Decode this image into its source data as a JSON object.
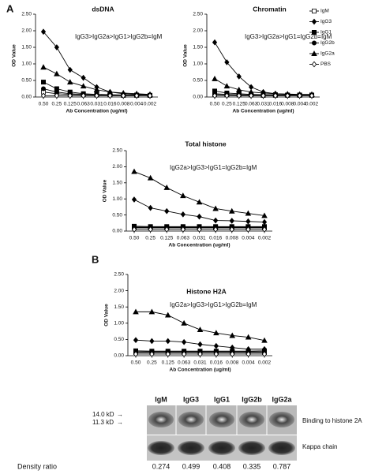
{
  "panels": [
    "A",
    "B"
  ],
  "chart_data": [
    {
      "type": "line",
      "title": "dsDNA",
      "annotation": "IgG3>IgG2a>IgG1>IgG2b=IgM",
      "xlabel": "Ab Concentration  (ug/ml)",
      "ylabel": "OD Value",
      "categories": [
        "0.50",
        "0.25",
        "0.125",
        "0.063",
        "0.031",
        "0.016",
        "0.008",
        "0.004",
        "0.002"
      ],
      "ylim": [
        0,
        2.5
      ],
      "yticks": [
        {
          "value": 0,
          "label": "0.00"
        },
        {
          "value": 0.5,
          "label": "0.50"
        },
        {
          "value": 1,
          "label": "1.00"
        },
        {
          "value": 1.5,
          "label": "1.50"
        },
        {
          "value": 2,
          "label": "2.00"
        },
        {
          "value": 2.5,
          "label": "2.50"
        }
      ],
      "series": [
        {
          "color": "#000",
          "marker": "open-square",
          "values": [
            0.15,
            0.1,
            0.08,
            0.07,
            0.06,
            0.06,
            0.05,
            0.05,
            0.05
          ]
        },
        {
          "color": "#000",
          "marker": "diamond",
          "values": [
            1.97,
            1.5,
            0.82,
            0.58,
            0.3,
            0.15,
            0.1,
            0.08,
            0.07
          ]
        },
        {
          "color": "#000",
          "marker": "square",
          "values": [
            0.45,
            0.25,
            0.15,
            0.1,
            0.08,
            0.07,
            0.06,
            0.06,
            0.05
          ]
        },
        {
          "color": "#000",
          "marker": "circle",
          "values": [
            0.25,
            0.15,
            0.1,
            0.08,
            0.07,
            0.06,
            0.06,
            0.05,
            0.05
          ]
        },
        {
          "color": "#000",
          "marker": "triangle",
          "values": [
            0.9,
            0.7,
            0.45,
            0.33,
            0.22,
            0.15,
            0.12,
            0.1,
            0.08
          ]
        },
        {
          "color": "#000",
          "marker": "open-diamond",
          "values": [
            0.04,
            0.04,
            0.04,
            0.04,
            0.04,
            0.04,
            0.04,
            0.04,
            0.04
          ]
        }
      ]
    },
    {
      "type": "line",
      "title": "Chromatin",
      "annotation": "IgG3>IgG2a>IgG1=IgG2b=IgM",
      "xlabel": "Ab Concentration  (ug/ml)",
      "ylabel": "OD Value",
      "legend": true,
      "categories": [
        "0.50",
        "0.25",
        "0.125",
        "0.063",
        "0.031",
        "0.016",
        "0.008",
        "0.004",
        "0.002"
      ],
      "ylim": [
        0,
        2.5
      ],
      "yticks": [
        {
          "value": 0,
          "label": "0.00"
        },
        {
          "value": 0.5,
          "label": "0.50"
        },
        {
          "value": 1,
          "label": "1.00"
        },
        {
          "value": 1.5,
          "label": "1.50"
        },
        {
          "value": 2,
          "label": "2.00"
        },
        {
          "value": 2.5,
          "label": "2.50"
        }
      ],
      "series": [
        {
          "name": "IgM",
          "color": "#000",
          "marker": "open-square",
          "values": [
            0.08,
            0.07,
            0.06,
            0.06,
            0.05,
            0.05,
            0.05,
            0.05,
            0.05
          ]
        },
        {
          "name": "IgG3",
          "color": "#000",
          "marker": "diamond",
          "values": [
            1.65,
            1.05,
            0.62,
            0.3,
            0.15,
            0.1,
            0.08,
            0.07,
            0.07
          ]
        },
        {
          "name": "IgG1",
          "color": "#000",
          "marker": "square",
          "values": [
            0.18,
            0.12,
            0.1,
            0.08,
            0.07,
            0.07,
            0.06,
            0.06,
            0.06
          ]
        },
        {
          "name": "IgG2b",
          "color": "#000",
          "marker": "circle",
          "values": [
            0.1,
            0.08,
            0.07,
            0.06,
            0.06,
            0.06,
            0.05,
            0.05,
            0.05
          ]
        },
        {
          "name": "IgG2a",
          "color": "#000",
          "marker": "triangle",
          "values": [
            0.55,
            0.33,
            0.22,
            0.15,
            0.12,
            0.1,
            0.09,
            0.08,
            0.08
          ]
        },
        {
          "name": "PBS",
          "color": "#000",
          "marker": "open-diamond",
          "values": [
            0.04,
            0.04,
            0.04,
            0.04,
            0.04,
            0.04,
            0.04,
            0.04,
            0.04
          ]
        }
      ]
    },
    {
      "type": "line",
      "title": "Total histone",
      "annotation": "IgG2a>IgG3>IgG1=IgG2b=IgM",
      "xlabel": "Ab Concentration  (ug/ml)",
      "ylabel": "OD Value",
      "categories": [
        "0.50",
        "0.25",
        "0.125",
        "0.063",
        "0.031",
        "0.016",
        "0.008",
        "0.004",
        "0.002"
      ],
      "ylim": [
        0,
        2.5
      ],
      "yticks": [
        {
          "value": 0,
          "label": "0.00"
        },
        {
          "value": 0.5,
          "label": "0.50"
        },
        {
          "value": 1,
          "label": "1.00"
        },
        {
          "value": 1.5,
          "label": "1.50"
        },
        {
          "value": 2,
          "label": "2.00"
        },
        {
          "value": 2.5,
          "label": "2.50"
        }
      ],
      "series": [
        {
          "color": "#000",
          "marker": "open-square",
          "values": [
            0.1,
            0.1,
            0.1,
            0.1,
            0.1,
            0.1,
            0.1,
            0.1,
            0.1
          ]
        },
        {
          "color": "#000",
          "marker": "diamond",
          "values": [
            0.98,
            0.72,
            0.62,
            0.52,
            0.45,
            0.33,
            0.32,
            0.3,
            0.28
          ]
        },
        {
          "color": "#000",
          "marker": "square",
          "values": [
            0.15,
            0.14,
            0.14,
            0.14,
            0.14,
            0.14,
            0.14,
            0.14,
            0.14
          ]
        },
        {
          "color": "#000",
          "marker": "circle",
          "values": [
            0.12,
            0.12,
            0.12,
            0.12,
            0.12,
            0.12,
            0.12,
            0.12,
            0.12
          ]
        },
        {
          "color": "#000",
          "marker": "triangle",
          "values": [
            1.85,
            1.65,
            1.35,
            1.1,
            0.9,
            0.7,
            0.62,
            0.55,
            0.48
          ]
        },
        {
          "color": "#000",
          "marker": "open-diamond",
          "values": [
            0.05,
            0.05,
            0.05,
            0.05,
            0.05,
            0.05,
            0.05,
            0.05,
            0.05
          ]
        }
      ]
    },
    {
      "type": "line",
      "title": "Histone H2A",
      "annotation": "IgG2a>IgG3>IgG1>IgG2b=IgM",
      "xlabel": "Ab Concentration  (ug/ml)",
      "ylabel": "OD Value",
      "categories": [
        "0.50",
        "0.25",
        "0.125",
        "0.063",
        "0.031",
        "0.016",
        "0.008",
        "0.004",
        "0.002"
      ],
      "ylim": [
        0,
        2.5
      ],
      "yticks": [
        {
          "value": 0,
          "label": "0.00"
        },
        {
          "value": 0.5,
          "label": "0.50"
        },
        {
          "value": 1,
          "label": "1.00"
        },
        {
          "value": 1.5,
          "label": "1.50"
        },
        {
          "value": 2,
          "label": "2.00"
        },
        {
          "value": 2.5,
          "label": "2.50"
        }
      ],
      "series": [
        {
          "color": "#000",
          "marker": "open-square",
          "values": [
            0.1,
            0.1,
            0.1,
            0.1,
            0.1,
            0.1,
            0.1,
            0.1,
            0.1
          ]
        },
        {
          "color": "#000",
          "marker": "diamond",
          "values": [
            0.48,
            0.45,
            0.45,
            0.42,
            0.35,
            0.3,
            0.25,
            0.2,
            0.2
          ]
        },
        {
          "color": "#000",
          "marker": "square",
          "values": [
            0.15,
            0.14,
            0.14,
            0.14,
            0.14,
            0.14,
            0.14,
            0.14,
            0.15
          ]
        },
        {
          "color": "#000",
          "marker": "circle",
          "values": [
            0.12,
            0.12,
            0.12,
            0.12,
            0.12,
            0.12,
            0.12,
            0.12,
            0.12
          ]
        },
        {
          "color": "#000",
          "marker": "triangle",
          "values": [
            1.35,
            1.35,
            1.25,
            1.0,
            0.8,
            0.7,
            0.62,
            0.57,
            0.47
          ]
        },
        {
          "color": "#000",
          "marker": "open-diamond",
          "values": [
            0.05,
            0.05,
            0.05,
            0.05,
            0.05,
            0.05,
            0.05,
            0.05,
            0.05
          ]
        }
      ]
    }
  ],
  "blot": {
    "lanes": [
      "IgM",
      "IgG3",
      "IgG1",
      "IgG2b",
      "IgG2a"
    ],
    "markers": [
      "14.0 kD",
      "11.3 kD"
    ],
    "rows": [
      "Binding to histone 2A",
      "Kappa chain"
    ],
    "density_label": "Density ratio",
    "density": [
      0.274,
      0.499,
      0.408,
      0.335,
      0.787
    ]
  }
}
